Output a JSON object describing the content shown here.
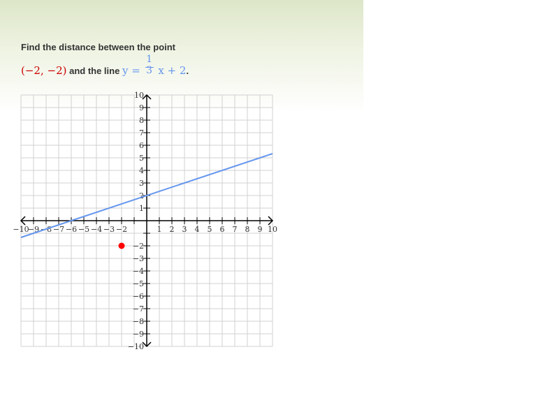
{
  "problem": {
    "prefix": "Find the distance between the point",
    "point_text": "(−2, −2)",
    "connector": "and the line",
    "line_lhs": "y =",
    "line_num": "1",
    "line_den": "3",
    "line_rhs": "x + 2",
    "end": "."
  },
  "colors": {
    "point": "#ff0000",
    "line": "#6495ed",
    "grid": "#d0d0d0",
    "axis": "#000000"
  },
  "graph": {
    "x_range": [
      -10,
      10
    ],
    "y_range": [
      -10,
      10
    ],
    "x_ticks": [
      "−10",
      "−9",
      "−8",
      "−7",
      "−6",
      "−5",
      "−4",
      "−3",
      "−2",
      "1",
      "2",
      "3",
      "4",
      "5",
      "6",
      "7",
      "8",
      "9",
      "10"
    ],
    "y_ticks": [
      "10",
      "9",
      "8",
      "7",
      "6",
      "5",
      "4",
      "3",
      "2",
      "1",
      "−2",
      "−3",
      "−4",
      "−5",
      "−6",
      "−7",
      "−8",
      "−9",
      "−10"
    ],
    "point": {
      "x": -2,
      "y": -2
    },
    "line": {
      "slope": 0.3333333,
      "intercept": 2
    }
  }
}
